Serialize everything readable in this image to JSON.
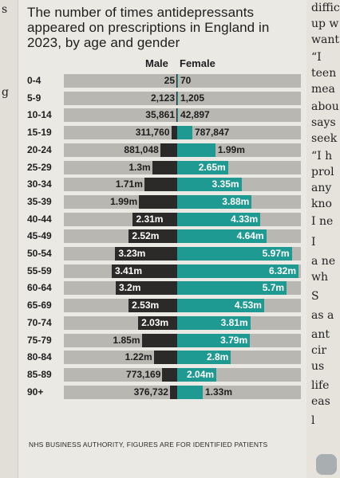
{
  "title": "The number of times antidepressants appeared on prescriptions in England in 2023, by age and gender",
  "header": {
    "male": "Male",
    "female": "Female"
  },
  "source": "NHS BUSINESS AUTHORITY, FIGURES ARE FOR IDENTIFIED PATIENTS",
  "left_edge_glyphs": [
    "s",
    "g"
  ],
  "right_column_text": [
    "diffic",
    "up w",
    "want",
    "“I",
    "teen",
    "mea",
    "abou",
    "says",
    "seek",
    "“I h",
    "prol",
    "any",
    "kno",
    "I ne",
    "I",
    "a ne",
    "wh",
    "S",
    "as a",
    "ant",
    "cir",
    "us",
    "life",
    "eas",
    "l"
  ],
  "colors": {
    "male": "#2b2a28",
    "female": "#1f9a93",
    "track": "#b9b7b2"
  },
  "chart_data": {
    "type": "bar",
    "orientation": "horizontal",
    "layout": "diverging",
    "title": "The number of times antidepressants appeared on prescriptions in England in 2023, by age and gender",
    "categories": [
      "0-4",
      "5-9",
      "10-14",
      "15-19",
      "20-24",
      "25-29",
      "30-34",
      "35-39",
      "40-44",
      "45-49",
      "50-54",
      "55-59",
      "60-64",
      "65-69",
      "70-74",
      "75-79",
      "80-84",
      "85-89",
      "90+"
    ],
    "series": [
      {
        "name": "Male",
        "values": [
          25,
          2123,
          35861,
          311760,
          881048,
          1300000,
          1710000,
          1990000,
          2310000,
          2520000,
          3230000,
          3410000,
          3200000,
          2530000,
          2030000,
          1850000,
          1220000,
          773169,
          376732
        ],
        "labels": [
          "25",
          "2,123",
          "35,861",
          "311,760",
          "881,048",
          "1.3m",
          "1.71m",
          "1.99m",
          "2.31m",
          "2.52m",
          "3.23m",
          "3.41m",
          "3.2m",
          "2.53m",
          "2.03m",
          "1.85m",
          "1.22m",
          "773,169",
          "376,732"
        ]
      },
      {
        "name": "Female",
        "values": [
          70,
          1205,
          42897,
          787847,
          1990000,
          2650000,
          3350000,
          3880000,
          4330000,
          4640000,
          5970000,
          6320000,
          5700000,
          4530000,
          3810000,
          3790000,
          2800000,
          2040000,
          1330000
        ],
        "labels": [
          "70",
          "1,205",
          "42,897",
          "787,847",
          "1.99m",
          "2.65m",
          "3.35m",
          "3.88m",
          "4.33m",
          "4.64m",
          "5.97m",
          "6.32m",
          "5.7m",
          "4.53m",
          "3.81m",
          "3.79m",
          "2.8m",
          "2.04m",
          "1.33m"
        ]
      }
    ],
    "grid": false,
    "legend": "top"
  }
}
